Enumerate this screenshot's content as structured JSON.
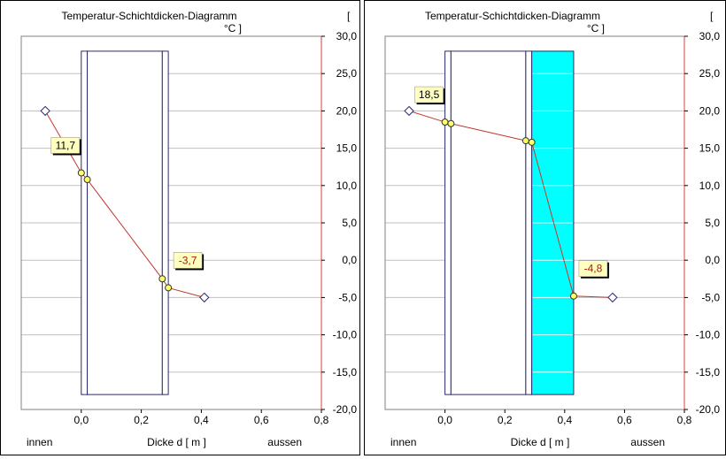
{
  "chart_data": [
    {
      "type": "line",
      "title": "Temperatur-Schichtdicken-Diagramm",
      "unit_open": "[",
      "unit": "°C ]",
      "xlabel": "Dicke d [ m ]",
      "x_left_label": "innen",
      "x_right_label": "aussen",
      "xlim": [
        -0.2,
        0.8
      ],
      "ylim": [
        -20,
        30
      ],
      "x_ticks": [
        "0,0",
        "0,2",
        "0,4",
        "0,6",
        "0,8"
      ],
      "y_ticks": [
        "30,0",
        "25,0",
        "20,0",
        "15,0",
        "10,0",
        "5,0",
        "0,0",
        "-5,0",
        "-10,0",
        "-15,0",
        "-20,0"
      ],
      "grid": true,
      "layers": [
        {
          "x0": 0.0,
          "x1": 0.02,
          "fill": "#ffffff"
        },
        {
          "x0": 0.02,
          "x1": 0.27,
          "fill": "#ffffff"
        },
        {
          "x0": 0.27,
          "x1": 0.29,
          "fill": "#ffffff"
        }
      ],
      "air_points": [
        {
          "x": -0.12,
          "y": 20.0
        },
        {
          "x": 0.41,
          "y": -5.0
        }
      ],
      "temperature_line": [
        {
          "x": -0.12,
          "y": 20.0
        },
        {
          "x": 0.0,
          "y": 11.7
        },
        {
          "x": 0.02,
          "y": 10.8
        },
        {
          "x": 0.27,
          "y": -2.5
        },
        {
          "x": 0.29,
          "y": -3.7
        },
        {
          "x": 0.41,
          "y": -5.0
        }
      ],
      "surface_points": [
        {
          "x": 0.0,
          "y": 11.7
        },
        {
          "x": 0.02,
          "y": 10.8
        },
        {
          "x": 0.27,
          "y": -2.5
        },
        {
          "x": 0.29,
          "y": -3.7
        }
      ],
      "annotations": [
        {
          "text": "11,7",
          "x": 0.0,
          "y": 11.7,
          "side": "left",
          "color": "#000000"
        },
        {
          "text": "-3,7",
          "x": 0.29,
          "y": -3.7,
          "side": "right",
          "color": "#a0200a"
        }
      ]
    },
    {
      "type": "line",
      "title": "Temperatur-Schichtdicken-Diagramm",
      "unit_open": "[",
      "unit": "°C ]",
      "xlabel": "Dicke d [ m ]",
      "x_left_label": "innen",
      "x_right_label": "aussen",
      "xlim": [
        -0.2,
        0.8
      ],
      "ylim": [
        -20,
        30
      ],
      "x_ticks": [
        "0,0",
        "0,2",
        "0,4",
        "0,6",
        "0,8"
      ],
      "y_ticks": [
        "30,0",
        "25,0",
        "20,0",
        "15,0",
        "10,0",
        "5,0",
        "0,0",
        "-5,0",
        "-10,0",
        "-15,0",
        "-20,0"
      ],
      "grid": true,
      "layers": [
        {
          "x0": 0.0,
          "x1": 0.02,
          "fill": "#ffffff"
        },
        {
          "x0": 0.02,
          "x1": 0.27,
          "fill": "#ffffff"
        },
        {
          "x0": 0.27,
          "x1": 0.29,
          "fill": "#ffffff"
        },
        {
          "x0": 0.29,
          "x1": 0.43,
          "fill": "#00ffff"
        }
      ],
      "air_points": [
        {
          "x": -0.12,
          "y": 20.0
        },
        {
          "x": 0.56,
          "y": -5.0
        }
      ],
      "temperature_line": [
        {
          "x": -0.12,
          "y": 20.0
        },
        {
          "x": 0.0,
          "y": 18.5
        },
        {
          "x": 0.02,
          "y": 18.3
        },
        {
          "x": 0.27,
          "y": 16.0
        },
        {
          "x": 0.29,
          "y": 15.8
        },
        {
          "x": 0.43,
          "y": -4.8
        },
        {
          "x": 0.56,
          "y": -5.0
        }
      ],
      "surface_points": [
        {
          "x": 0.0,
          "y": 18.5
        },
        {
          "x": 0.02,
          "y": 18.3
        },
        {
          "x": 0.27,
          "y": 16.0
        },
        {
          "x": 0.29,
          "y": 15.8
        },
        {
          "x": 0.43,
          "y": -4.8
        }
      ],
      "annotations": [
        {
          "text": "18,5",
          "x": 0.0,
          "y": 18.5,
          "side": "left",
          "color": "#000000"
        },
        {
          "text": "-4,8",
          "x": 0.43,
          "y": -4.8,
          "side": "right",
          "color": "#a0200a"
        }
      ]
    }
  ],
  "colors": {
    "line": "#c0392b",
    "surface_point": "#ffff66",
    "air_point_stroke": "#2a2a7a",
    "layer_stroke": "#2a2a6a",
    "grid": "#c0c0c0",
    "frame": "#808080",
    "label_box": "#ffffc0",
    "right_axis_line": "#d04040"
  }
}
